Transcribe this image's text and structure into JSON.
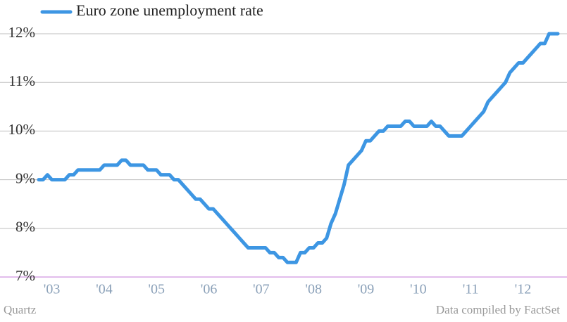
{
  "chart_data": {
    "type": "line",
    "categories": [
      null,
      null,
      null,
      "'03",
      null,
      null,
      null,
      null,
      null,
      null,
      null,
      null,
      null,
      null,
      null,
      "'04",
      null,
      null,
      null,
      null,
      null,
      null,
      null,
      null,
      null,
      null,
      null,
      "'05",
      null,
      null,
      null,
      null,
      null,
      null,
      null,
      null,
      null,
      null,
      null,
      "'06",
      null,
      null,
      null,
      null,
      null,
      null,
      null,
      null,
      null,
      null,
      null,
      "'07",
      null,
      null,
      null,
      null,
      null,
      null,
      null,
      null,
      null,
      null,
      null,
      "'08",
      null,
      null,
      null,
      null,
      null,
      null,
      null,
      null,
      null,
      null,
      null,
      "'09",
      null,
      null,
      null,
      null,
      null,
      null,
      null,
      null,
      null,
      null,
      null,
      "'10",
      null,
      null,
      null,
      null,
      null,
      null,
      null,
      null,
      null,
      null,
      null,
      "'11",
      null,
      null,
      null,
      null,
      null,
      null,
      null,
      null,
      null,
      null,
      null,
      "'12",
      null,
      null,
      null,
      null,
      null,
      null,
      null,
      null
    ],
    "series": [
      {
        "name": "Euro zone unemployment rate",
        "color": "#3d96e3",
        "values": [
          9.0,
          9.0,
          9.1,
          9.0,
          9.0,
          9.0,
          9.0,
          9.1,
          9.1,
          9.2,
          9.2,
          9.2,
          9.2,
          9.2,
          9.2,
          9.3,
          9.3,
          9.3,
          9.3,
          9.4,
          9.4,
          9.3,
          9.3,
          9.3,
          9.3,
          9.2,
          9.2,
          9.2,
          9.1,
          9.1,
          9.1,
          9.0,
          9.0,
          8.9,
          8.8,
          8.7,
          8.6,
          8.6,
          8.5,
          8.4,
          8.4,
          8.3,
          8.2,
          8.1,
          8.0,
          7.9,
          7.8,
          7.7,
          7.6,
          7.6,
          7.6,
          7.6,
          7.6,
          7.5,
          7.5,
          7.4,
          7.4,
          7.3,
          7.3,
          7.3,
          7.5,
          7.5,
          7.6,
          7.6,
          7.7,
          7.7,
          7.8,
          8.1,
          8.3,
          8.6,
          8.9,
          9.3,
          9.4,
          9.5,
          9.6,
          9.8,
          9.8,
          9.9,
          10.0,
          10.0,
          10.1,
          10.1,
          10.1,
          10.1,
          10.2,
          10.2,
          10.1,
          10.1,
          10.1,
          10.1,
          10.2,
          10.1,
          10.1,
          10.0,
          9.9,
          9.9,
          9.9,
          9.9,
          10.0,
          10.1,
          10.2,
          10.3,
          10.4,
          10.6,
          10.7,
          10.8,
          10.9,
          11.0,
          11.2,
          11.3,
          11.4,
          11.4,
          11.5,
          11.6,
          11.7,
          11.8,
          11.8,
          12.0,
          12.0,
          12.0
        ]
      }
    ],
    "ylim": [
      7,
      12
    ],
    "yticks": [
      {
        "value": 7,
        "label": "7%"
      },
      {
        "value": 8,
        "label": "8%"
      },
      {
        "value": 9,
        "label": "9%"
      },
      {
        "value": 10,
        "label": "10%"
      },
      {
        "value": 11,
        "label": "11%"
      },
      {
        "value": 12,
        "label": "12%"
      }
    ],
    "grid": true,
    "legend": "top-left",
    "source_left": "Quartz",
    "source_right": "Data compiled by FactSet"
  }
}
